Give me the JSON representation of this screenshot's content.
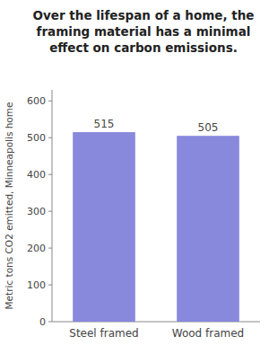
{
  "chart_data": {
    "type": "bar",
    "title": "Over the lifespan of a home, the\nframing material has a minimal\neffect on carbon emissions.",
    "ylabel": "Metric tons CO2 emitted, Minneapolis home",
    "categories": [
      "Steel framed",
      "Wood framed"
    ],
    "values": [
      515,
      505
    ],
    "color": "#8888dd",
    "ylim": [
      0,
      630
    ],
    "yticks": [
      0,
      100,
      200,
      300,
      400,
      500,
      600
    ],
    "grid": false,
    "data_labels": true
  }
}
